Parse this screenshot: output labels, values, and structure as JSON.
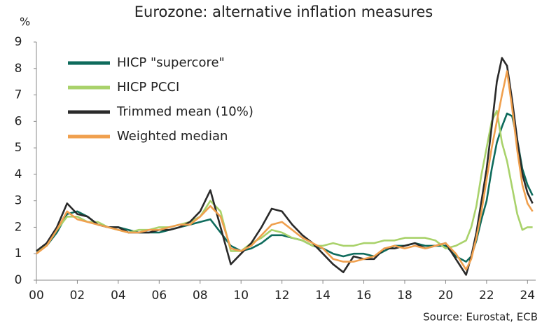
{
  "chart_data": {
    "type": "line",
    "title": "Eurozone: alternative inflation measures",
    "y_unit": "%",
    "source": "Source: Eurostat, ECB",
    "legend": "upper left",
    "grid": false,
    "xlim": [
      2000,
      2024.4
    ],
    "ylim": [
      0,
      9
    ],
    "yticks": [
      0,
      1,
      2,
      3,
      4,
      5,
      6,
      7,
      8,
      9
    ],
    "xticks": [
      {
        "value": 2000,
        "label": "00"
      },
      {
        "value": 2002,
        "label": "02"
      },
      {
        "value": 2004,
        "label": "04"
      },
      {
        "value": 2006,
        "label": "06"
      },
      {
        "value": 2008,
        "label": "08"
      },
      {
        "value": 2010,
        "label": "10"
      },
      {
        "value": 2012,
        "label": "12"
      },
      {
        "value": 2014,
        "label": "14"
      },
      {
        "value": 2016,
        "label": "16"
      },
      {
        "value": 2018,
        "label": "18"
      },
      {
        "value": 2020,
        "label": "20"
      },
      {
        "value": 2022,
        "label": "22"
      },
      {
        "value": 2024,
        "label": "24"
      }
    ],
    "x": [
      2000,
      2000.5,
      2001,
      2001.5,
      2002,
      2002.5,
      2003,
      2003.5,
      2004,
      2004.5,
      2005,
      2005.5,
      2006,
      2006.5,
      2007,
      2007.5,
      2008,
      2008.5,
      2009,
      2009.5,
      2010,
      2010.5,
      2011,
      2011.5,
      2012,
      2012.5,
      2013,
      2013.5,
      2014,
      2014.5,
      2015,
      2015.5,
      2016,
      2016.5,
      2017,
      2017.5,
      2018,
      2018.5,
      2019,
      2019.5,
      2020,
      2020.5,
      2021,
      2021.25,
      2021.5,
      2021.75,
      2022,
      2022.25,
      2022.5,
      2022.75,
      2023,
      2023.25,
      2023.5,
      2023.75,
      2024,
      2024.25
    ],
    "series": [
      {
        "name": "HICP \"supercore\"",
        "color": "#0e6b5c",
        "values": [
          1.1,
          1.3,
          1.8,
          2.5,
          2.6,
          2.4,
          2.1,
          2.0,
          2.0,
          1.9,
          1.8,
          1.8,
          1.8,
          1.9,
          2.0,
          2.1,
          2.2,
          2.3,
          1.8,
          1.3,
          1.1,
          1.2,
          1.4,
          1.7,
          1.7,
          1.6,
          1.5,
          1.3,
          1.2,
          1.0,
          0.9,
          1.0,
          1.0,
          0.9,
          1.1,
          1.3,
          1.3,
          1.4,
          1.3,
          1.3,
          1.3,
          0.9,
          0.7,
          0.9,
          1.5,
          2.3,
          3.0,
          4.2,
          5.2,
          5.8,
          6.3,
          6.2,
          5.3,
          4.2,
          3.6,
          3.2
        ]
      },
      {
        "name": "HICP PCCI",
        "color": "#a9d26b",
        "values": [
          1.1,
          1.3,
          1.9,
          2.4,
          2.4,
          2.2,
          2.2,
          2.0,
          1.9,
          1.8,
          1.9,
          1.9,
          2.0,
          2.0,
          2.1,
          2.2,
          2.4,
          3.0,
          2.6,
          1.1,
          1.1,
          1.4,
          1.6,
          1.9,
          1.8,
          1.6,
          1.5,
          1.3,
          1.3,
          1.4,
          1.3,
          1.3,
          1.4,
          1.4,
          1.5,
          1.5,
          1.6,
          1.6,
          1.6,
          1.5,
          1.2,
          1.3,
          1.5,
          2.0,
          2.8,
          4.0,
          5.0,
          6.0,
          6.4,
          5.2,
          4.5,
          3.5,
          2.5,
          1.9,
          2.0,
          2.0
        ]
      },
      {
        "name": "Trimmed mean (10%)",
        "color": "#2a2a2a",
        "values": [
          1.1,
          1.4,
          2.0,
          2.9,
          2.5,
          2.4,
          2.1,
          2.0,
          2.0,
          1.8,
          1.8,
          1.8,
          1.9,
          1.9,
          2.0,
          2.2,
          2.6,
          3.4,
          2.0,
          0.6,
          1.0,
          1.4,
          2.0,
          2.7,
          2.6,
          2.1,
          1.7,
          1.4,
          1.0,
          0.6,
          0.3,
          0.9,
          0.8,
          0.8,
          1.2,
          1.2,
          1.3,
          1.4,
          1.2,
          1.3,
          1.4,
          0.8,
          0.2,
          0.9,
          1.8,
          3.0,
          4.2,
          5.8,
          7.5,
          8.4,
          8.1,
          6.8,
          5.3,
          4.0,
          3.3,
          2.9
        ]
      },
      {
        "name": "Weighted median",
        "color": "#f0a04e",
        "values": [
          1.0,
          1.3,
          1.9,
          2.6,
          2.3,
          2.2,
          2.1,
          2.0,
          1.9,
          1.8,
          1.8,
          1.9,
          1.9,
          2.0,
          2.1,
          2.1,
          2.4,
          2.8,
          2.4,
          1.2,
          1.1,
          1.3,
          1.7,
          2.1,
          2.2,
          1.9,
          1.6,
          1.4,
          1.2,
          0.8,
          0.7,
          0.7,
          0.8,
          0.9,
          1.2,
          1.3,
          1.2,
          1.3,
          1.2,
          1.3,
          1.4,
          1.0,
          0.4,
          0.8,
          1.6,
          2.6,
          3.8,
          5.0,
          6.0,
          7.0,
          7.9,
          6.5,
          4.9,
          3.6,
          2.9,
          2.6
        ]
      }
    ]
  }
}
